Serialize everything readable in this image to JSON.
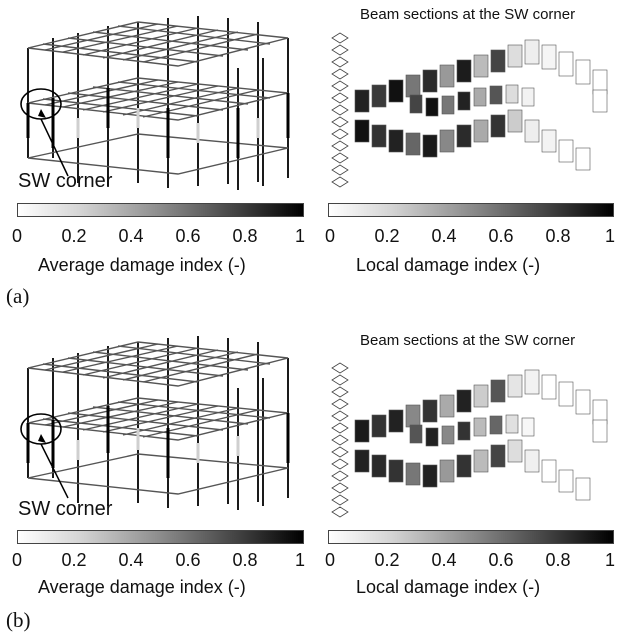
{
  "panels": [
    {
      "letter": "(a)",
      "corner_label": "SW corner",
      "right_title": "Beam sections at the SW corner",
      "left_colorbar": {
        "label": "Average damage index (-)",
        "ticks": [
          "0",
          "0.2",
          "0.4",
          "0.6",
          "0.8",
          "1"
        ]
      },
      "right_colorbar": {
        "label": "Local damage index (-)",
        "ticks": [
          "0",
          "0.2",
          "0.4",
          "0.6",
          "0.8",
          "1"
        ]
      }
    },
    {
      "letter": "(b)",
      "corner_label": "SW corner",
      "right_title": "Beam sections at the SW corner",
      "left_colorbar": {
        "label": "Average damage index (-)",
        "ticks": [
          "0",
          "0.2",
          "0.4",
          "0.6",
          "0.8",
          "1"
        ]
      },
      "right_colorbar": {
        "label": "Local damage index (-)",
        "ticks": [
          "0",
          "0.2",
          "0.4",
          "0.6",
          "0.8",
          "1"
        ]
      }
    }
  ],
  "colors": {
    "low_damage": "#ffffff",
    "high_damage": "#000000",
    "frame_line": "#1a1a1a"
  }
}
